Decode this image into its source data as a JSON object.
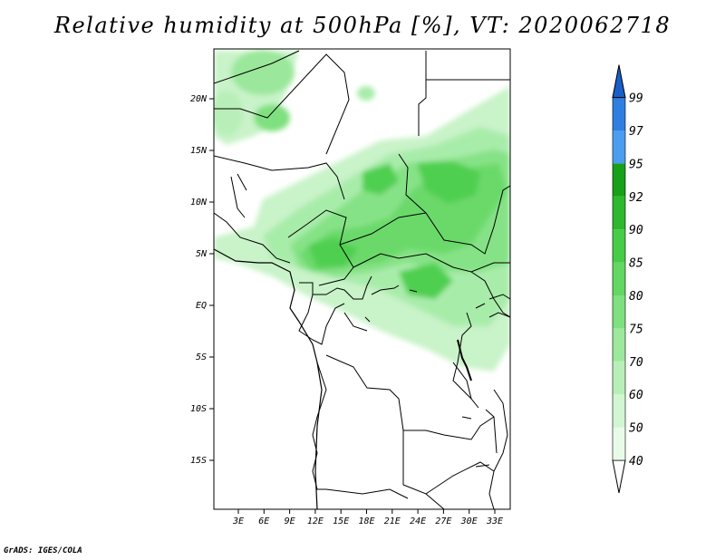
{
  "title": "Relative humidity at 500hPa [%], VT: 2020062718",
  "credit": "GrADS: IGES/COLA",
  "map": {
    "lat_labels": [
      "20N",
      "15N",
      "10N",
      "5N",
      "EQ",
      "5S",
      "10S",
      "15S"
    ],
    "lon_labels": [
      "3E",
      "6E",
      "9E",
      "12E",
      "15E",
      "18E",
      "21E",
      "24E",
      "27E",
      "30E",
      "33E"
    ]
  },
  "colorbar": {
    "levels": [
      "40",
      "50",
      "60",
      "70",
      "75",
      "80",
      "85",
      "90",
      "92",
      "95",
      "97",
      "99"
    ],
    "colors": [
      "#e8fbe8",
      "#d2f5d2",
      "#b8efb8",
      "#9ce89c",
      "#7fe07f",
      "#62d762",
      "#46cc46",
      "#2db82d",
      "#18a018",
      "#4b9df0",
      "#2f7fe0",
      "#1a5ec8"
    ],
    "upper_arrow_color": "#1a5ec8"
  }
}
